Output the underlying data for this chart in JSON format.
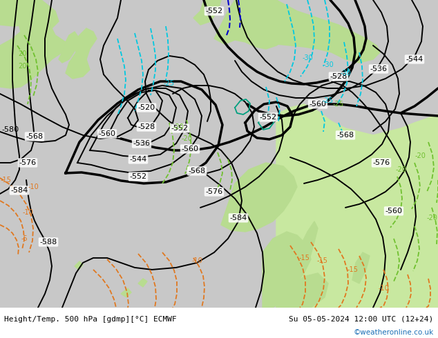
{
  "title_left": "Height/Temp. 500 hPa [gdmp][°C] ECMWF",
  "title_right": "Su 05-05-2024 12:00 UTC (12+24)",
  "watermark": "©weatheronline.co.uk",
  "bg_color": "#c8c8c8",
  "land_green": "#b8dc90",
  "land_green2": "#c8e8a0",
  "figsize": [
    6.34,
    4.9
  ],
  "dpi": 100,
  "cyan": "#00c8e0",
  "blue": "#0000cc",
  "teal": "#00a080",
  "orange": "#e07820",
  "green_dash": "#70c030",
  "black": "#000000"
}
